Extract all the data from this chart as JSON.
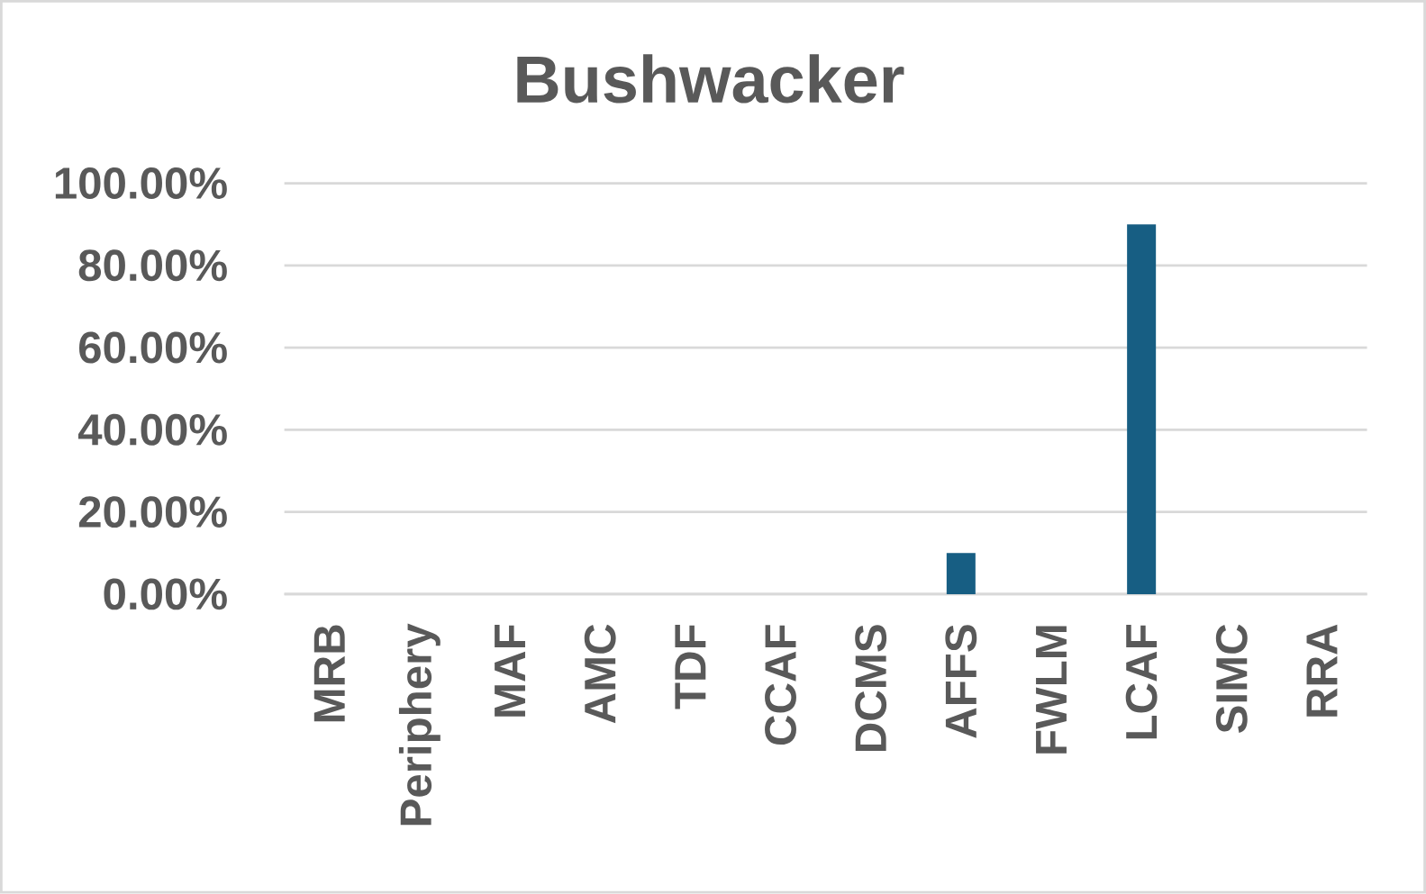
{
  "chart_data": {
    "type": "bar",
    "title": "Bushwacker",
    "categories": [
      "MRB",
      "Periphery",
      "MAF",
      "AMC",
      "TDF",
      "CCAF",
      "DCMS",
      "AFFS",
      "FWLM",
      "LCAF",
      "SIMC",
      "RRA"
    ],
    "values": [
      0,
      0,
      0,
      0,
      0,
      0,
      0,
      10,
      0,
      90,
      0,
      0
    ],
    "color": "#175e83",
    "ylim": [
      0,
      100
    ],
    "yticks": [
      {
        "value": 0,
        "label": "0.00%"
      },
      {
        "value": 20,
        "label": "20.00%"
      },
      {
        "value": 40,
        "label": "40.00%"
      },
      {
        "value": 60,
        "label": "60.00%"
      },
      {
        "value": 80,
        "label": "80.00%"
      },
      {
        "value": 100,
        "label": "100.00%"
      }
    ],
    "grid": "y"
  }
}
